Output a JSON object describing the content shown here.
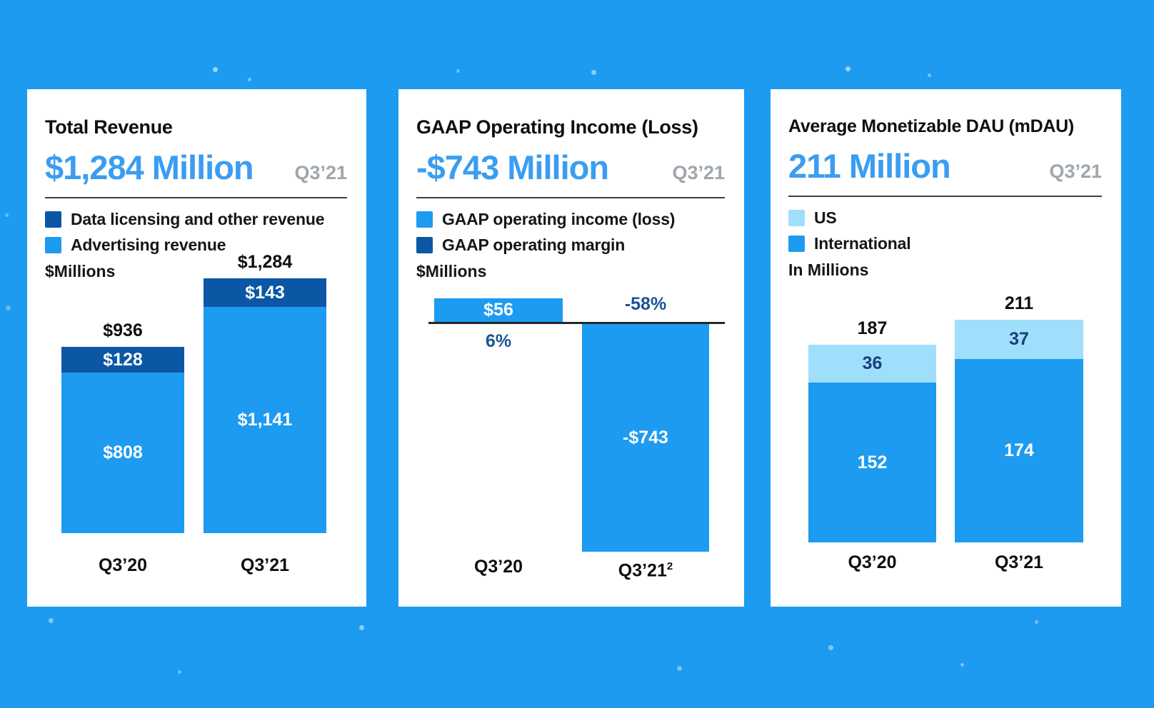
{
  "colors": {
    "background": "#1D9BF0",
    "card": "#FFFFFF",
    "blue": "#1D9BF0",
    "navy": "#0B57A5",
    "light_blue": "#9FDFFB",
    "headline_blue": "#3B9DF1",
    "period_gray": "#9FA6AC",
    "ink": "#0C0F13",
    "navy_number_text": "#1A3E7D",
    "percent_text": "#1C5496",
    "axis": "#24282B"
  },
  "cards": [
    {
      "title": "Total Revenue",
      "headline": "$1,284 Million",
      "period": "Q3’21",
      "legend": [
        {
          "label": "Data licensing and other revenue",
          "color": "#0B57A5"
        },
        {
          "label": "Advertising revenue",
          "color": "#1D9BF0"
        }
      ],
      "units": "$Millions"
    },
    {
      "title": "GAAP Operating Income (Loss)",
      "headline": "-$743 Million",
      "period": "Q3’21",
      "legend": [
        {
          "label": "GAAP operating income (loss)",
          "color": "#1D9BF0"
        },
        {
          "label": "GAAP operating margin",
          "color": "#0B57A5"
        }
      ],
      "units": "$Millions"
    },
    {
      "title": "Average Monetizable DAU (mDAU)",
      "headline": "211 Million",
      "period": "Q3’21",
      "legend": [
        {
          "label": "US",
          "color": "#9FDFFB"
        },
        {
          "label": "International",
          "color": "#1D9BF0"
        }
      ],
      "units": "In Millions"
    }
  ],
  "chart_data": [
    {
      "type": "bar",
      "subtype": "stacked",
      "title": "Total Revenue",
      "subtitle": "$1,284 Million Q3’21",
      "ylabel": "$Millions",
      "categories": [
        "Q3’20",
        "Q3’21"
      ],
      "series": [
        {
          "name": "Data licensing and other revenue",
          "stack_position": "top",
          "color": "#0B57A5",
          "text_color": "#FFFFFF",
          "values": [
            128,
            143
          ],
          "labels": [
            "$128",
            "$143"
          ]
        },
        {
          "name": "Advertising revenue",
          "stack_position": "bottom",
          "color": "#1D9BF0",
          "text_color": "#FFFFFF",
          "values": [
            808,
            1141
          ],
          "labels": [
            "$808",
            "$1,141"
          ]
        }
      ],
      "totals": [
        936,
        1284
      ],
      "total_labels": [
        "$936",
        "$1,284"
      ],
      "legend_position": "top-left",
      "grid": false
    },
    {
      "type": "bar",
      "subtype": "positive-negative",
      "title": "GAAP Operating Income (Loss)",
      "subtitle": "-$743 Million Q3’21",
      "ylabel": "$Millions",
      "categories": [
        "Q3’20",
        "Q3’21"
      ],
      "category_sups": [
        "",
        "2"
      ],
      "series": [
        {
          "name": "GAAP operating income (loss)",
          "color": "#1D9BF0",
          "text_color": "#FFFFFF",
          "values": [
            56,
            -743
          ],
          "labels": [
            "$56",
            "-$743"
          ]
        }
      ],
      "margins": {
        "name": "GAAP operating margin",
        "values_pct": [
          6,
          -58
        ],
        "labels": [
          "6%",
          "-58%"
        ],
        "text_color": "#1C5496"
      },
      "legend_position": "top-left",
      "grid": false
    },
    {
      "type": "bar",
      "subtype": "stacked",
      "title": "Average Monetizable DAU (mDAU)",
      "subtitle": "211 Million Q3’21",
      "ylabel": "In Millions",
      "categories": [
        "Q3’20",
        "Q3’21"
      ],
      "series": [
        {
          "name": "US",
          "stack_position": "top",
          "color": "#9FDFFB",
          "text_color": "#1A3E7D",
          "values": [
            36,
            37
          ],
          "labels": [
            "36",
            "37"
          ]
        },
        {
          "name": "International",
          "stack_position": "bottom",
          "color": "#1D9BF0",
          "text_color": "#FFFFFF",
          "values": [
            152,
            174
          ],
          "labels": [
            "152",
            "174"
          ]
        }
      ],
      "totals": [
        187,
        211
      ],
      "total_labels": [
        "187",
        "211"
      ],
      "legend_position": "top-left",
      "grid": false
    }
  ]
}
